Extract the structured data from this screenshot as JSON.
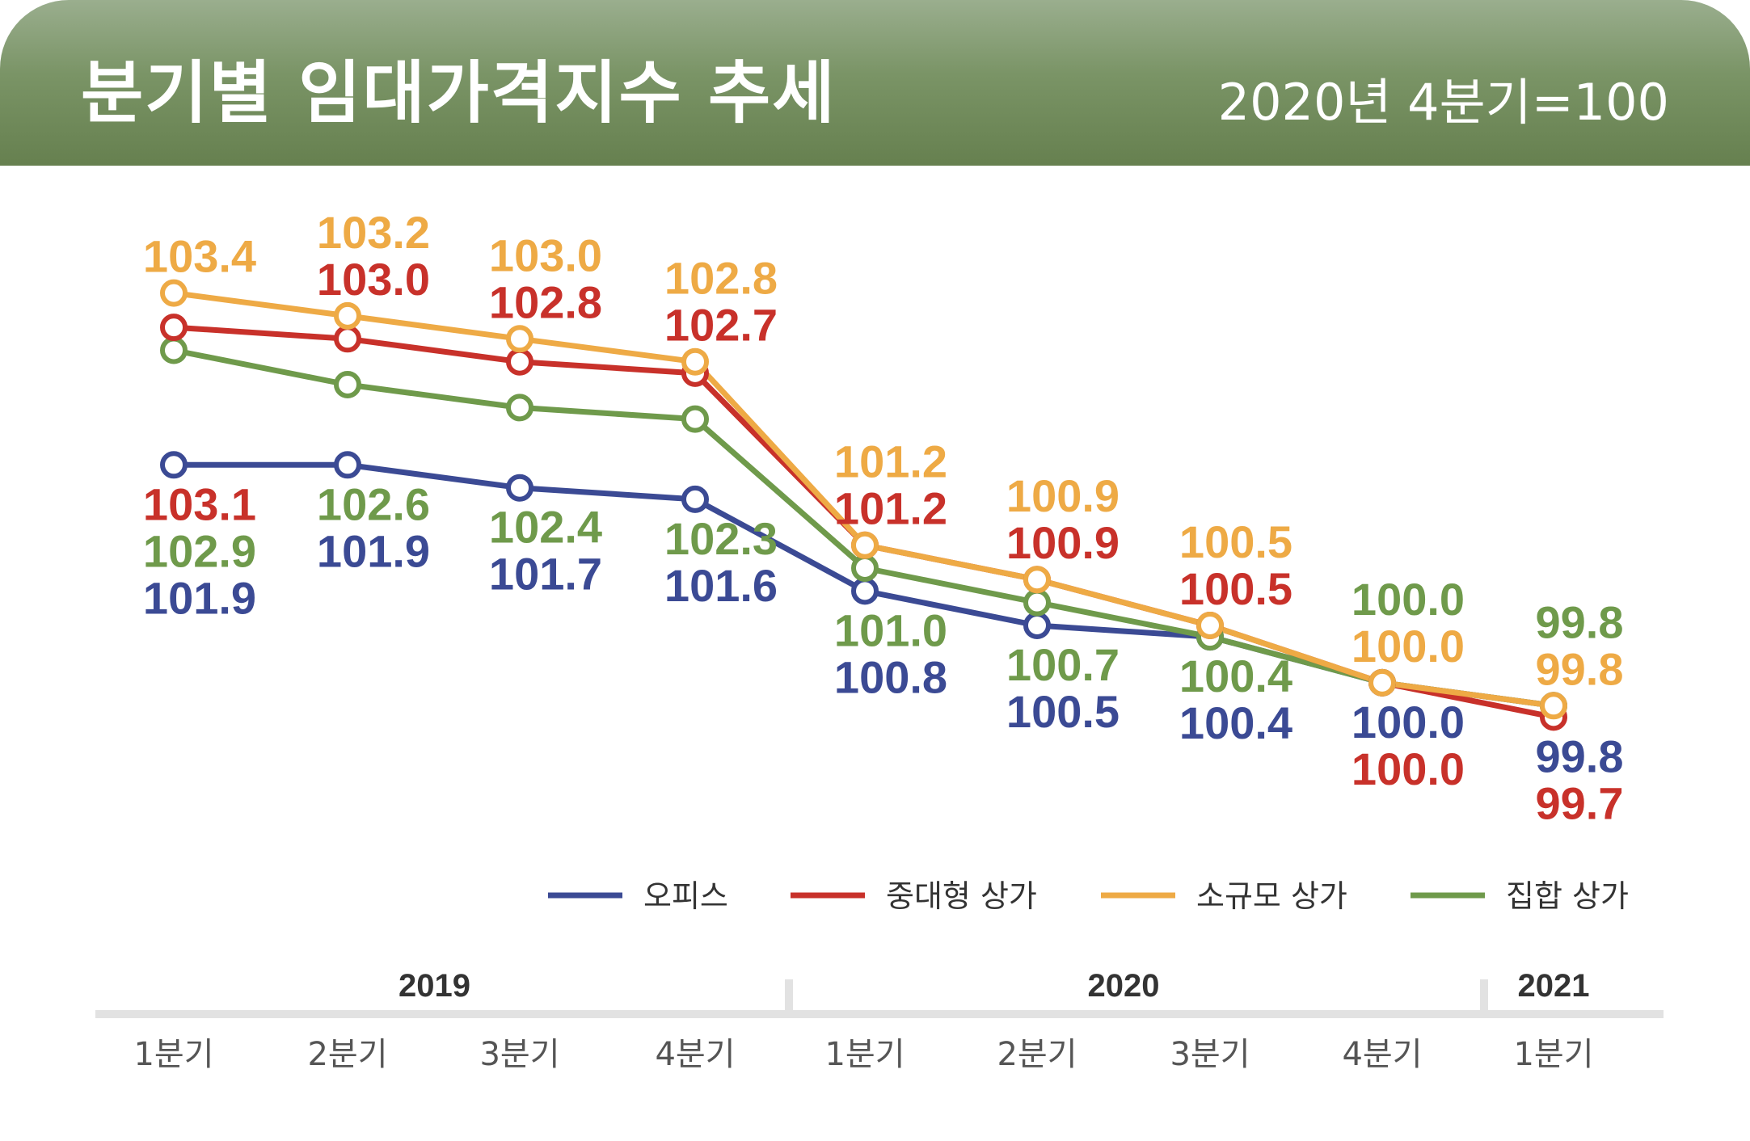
{
  "header": {
    "title": "분기별 임대가격지수 추세",
    "note": "2020년 4분기=100"
  },
  "chart_data": {
    "type": "line",
    "title": "분기별 임대가격지수 추세",
    "subtitle": "2020년 4분기=100",
    "categories": [
      "1분기",
      "2분기",
      "3분기",
      "4분기",
      "1분기",
      "2분기",
      "3분기",
      "4분기",
      "1분기"
    ],
    "year_groups": [
      {
        "label": "2019",
        "quarters": 4
      },
      {
        "label": "2020",
        "quarters": 4
      },
      {
        "label": "2021",
        "quarters": 1
      }
    ],
    "ylim": [
      99.4,
      103.7
    ],
    "grid": false,
    "legend_position": "bottom-right",
    "series": [
      {
        "name": "오피스",
        "color": "#3b4a94",
        "values": [
          101.9,
          101.9,
          101.7,
          101.6,
          100.8,
          100.5,
          100.4,
          100.0,
          99.8
        ]
      },
      {
        "name": "중대형 상가",
        "color": "#c8312a",
        "values": [
          103.1,
          103.0,
          102.8,
          102.7,
          101.2,
          100.9,
          100.5,
          100.0,
          99.7
        ]
      },
      {
        "name": "소규모 상가",
        "color": "#eeaa45",
        "values": [
          103.4,
          103.2,
          103.0,
          102.8,
          101.2,
          100.9,
          100.5,
          100.0,
          99.8
        ]
      },
      {
        "name": "집합 상가",
        "color": "#6f9a4b",
        "values": [
          102.9,
          102.6,
          102.4,
          102.3,
          101.0,
          100.7,
          100.4,
          100.0,
          99.8
        ]
      }
    ]
  }
}
